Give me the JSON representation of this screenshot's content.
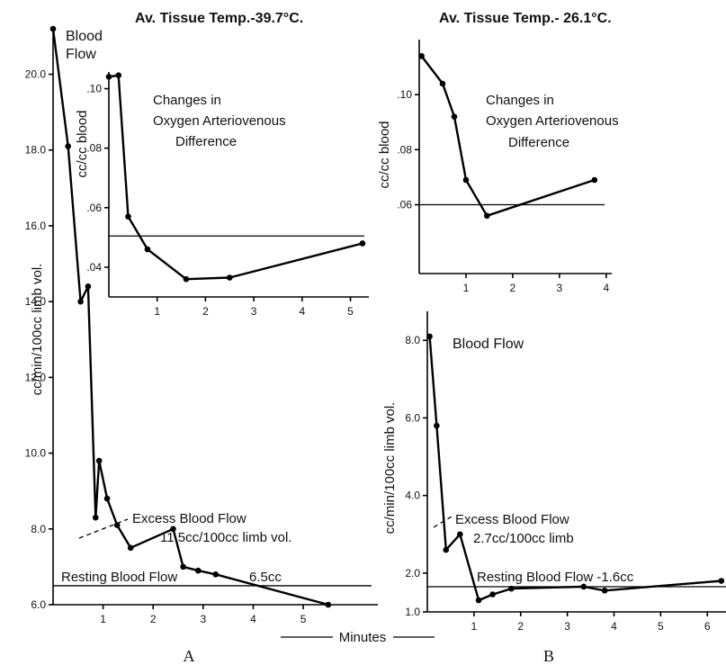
{
  "chart_data": [
    {
      "id": "A_flow",
      "type": "line",
      "panel_letter": "A",
      "title": "Av. Tissue Temp.-39.7°C.",
      "ylabel": "cc/min/100cc limb vol.",
      "xlim": [
        0,
        5.7
      ],
      "ylim": [
        6.0,
        21.2
      ],
      "xticks": [
        1,
        2,
        3,
        4,
        5
      ],
      "yticks": [
        6.0,
        8.0,
        10.0,
        12.0,
        14.0,
        16.0,
        18.0,
        20.0
      ],
      "ytick_labels": [
        "6.0",
        "8.0",
        "10.0",
        "12.0",
        "14.0",
        "16.0",
        "18.0",
        "20.0"
      ],
      "series": [
        {
          "name": "Blood Flow",
          "x": [
            0.0,
            0.3,
            0.55,
            0.7,
            0.85,
            0.92,
            1.08,
            1.28,
            1.55,
            2.4,
            2.6,
            2.9,
            3.25,
            5.5
          ],
          "y": [
            21.2,
            18.1,
            14.0,
            14.4,
            8.3,
            9.8,
            8.8,
            8.1,
            7.5,
            8.0,
            7.0,
            6.9,
            6.8,
            6.0
          ]
        }
      ],
      "reference_line": {
        "y": 6.5,
        "label": "Resting Blood Flow",
        "value_label": "6.5cc"
      },
      "annotation_lines": [
        "Excess Blood Flow",
        "11.5cc/100cc limb vol."
      ]
    },
    {
      "id": "A_avdiff",
      "type": "line",
      "title": "Changes in Oxygen Arteriovenous Difference",
      "title_lines": [
        "Changes in",
        "Oxygen Arteriovenous",
        "Difference"
      ],
      "ylabel": "cc/cc blood",
      "xlim": [
        0,
        5.4
      ],
      "ylim": [
        0.03,
        0.105
      ],
      "xticks": [
        1,
        2,
        3,
        4,
        5
      ],
      "yticks": [
        0.04,
        0.06,
        0.08,
        0.1
      ],
      "ytick_labels": [
        ".04",
        ".06",
        ".08",
        ".10"
      ],
      "series": [
        {
          "name": "",
          "x": [
            0.0,
            0.2,
            0.4,
            0.8,
            1.6,
            2.5,
            5.25
          ],
          "y": [
            0.104,
            0.1045,
            0.057,
            0.046,
            0.036,
            0.0365,
            0.048
          ]
        }
      ],
      "reference_line": {
        "y": 0.0505
      }
    },
    {
      "id": "B_avdiff",
      "type": "line",
      "panel_letter": "B",
      "title": "Av. Tissue Temp.- 26.1°C.",
      "subtitle_lines": [
        "Changes in",
        "Oxygen Arteriovenous",
        "Difference"
      ],
      "ylabel": "cc/cc blood",
      "xlim": [
        0,
        4.1
      ],
      "ylim": [
        0.035,
        0.12
      ],
      "xticks": [
        1,
        2,
        3,
        4
      ],
      "yticks": [
        0.06,
        0.08,
        0.1
      ],
      "ytick_labels": [
        ".06",
        ".08",
        ".10"
      ],
      "series": [
        {
          "name": "",
          "x": [
            0.05,
            0.5,
            0.75,
            1.0,
            1.45,
            3.75
          ],
          "y": [
            0.114,
            0.104,
            0.092,
            0.069,
            0.056,
            0.069
          ]
        }
      ],
      "reference_line": {
        "y": 0.06
      }
    },
    {
      "id": "B_flow",
      "type": "line",
      "ylabel": "cc/min/100cc limb vol.",
      "xlim": [
        0,
        6.4
      ],
      "ylim": [
        1.0,
        8.7
      ],
      "xticks": [
        1,
        2,
        3,
        4,
        5,
        6
      ],
      "yticks": [
        1.0,
        2.0,
        4.0,
        6.0,
        8.0
      ],
      "ytick_labels": [
        "1.0",
        "2.0",
        "4.0",
        "6.0",
        "8.0"
      ],
      "series": [
        {
          "name": "Blood Flow",
          "x": [
            0.05,
            0.2,
            0.4,
            0.7,
            1.1,
            1.4,
            1.8,
            3.35,
            3.8,
            6.3
          ],
          "y": [
            8.1,
            5.8,
            2.6,
            3.0,
            1.3,
            1.45,
            1.6,
            1.65,
            1.55,
            1.8
          ]
        }
      ],
      "reference_line": {
        "y": 1.65,
        "label": "Resting Blood Flow -1.6cc"
      },
      "annotation_lines": [
        "Excess Blood Flow",
        "2.7cc/100cc limb"
      ]
    }
  ],
  "xaxis_label": "Minutes",
  "panel_letters": [
    "A",
    "B"
  ]
}
